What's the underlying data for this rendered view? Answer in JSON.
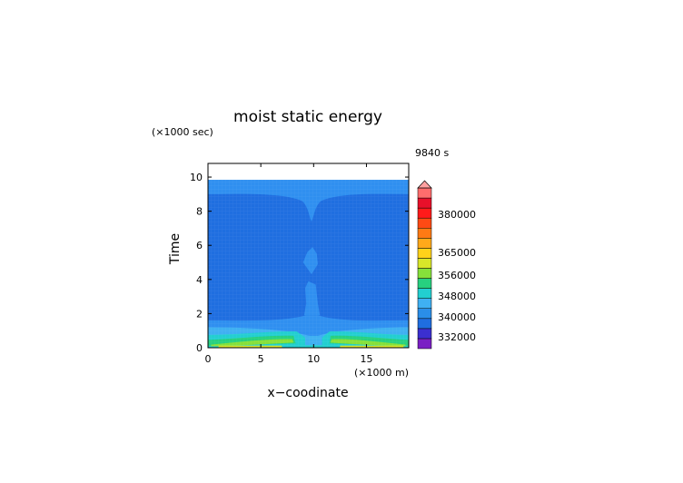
{
  "chart_data": {
    "type": "heatmap",
    "title": "moist static energy",
    "xlabel": "x−coodinate",
    "ylabel": "Time",
    "x_unit": "(×1000 m)",
    "y_unit": "(×1000 sec)",
    "time_label": "9840 s",
    "xlim": [
      0,
      19
    ],
    "ylim": [
      0,
      10.8
    ],
    "data_ymax": 9.84,
    "x_ticks": [
      "0",
      "5",
      "10",
      "15"
    ],
    "y_ticks": [
      "0",
      "2",
      "4",
      "6",
      "8",
      "10"
    ],
    "colorbar": {
      "labels": [
        "332000",
        "340000",
        "348000",
        "356000",
        "365000",
        "380000"
      ],
      "colors": [
        "#7a1fc4",
        "#3b2fd0",
        "#1f6ee0",
        "#2a8ee8",
        "#3fb0f2",
        "#22cfd0",
        "#27d07f",
        "#86e03a",
        "#d8e629",
        "#ffd21a",
        "#ffa91a",
        "#ff7a14",
        "#ff4a14",
        "#ff1a1a",
        "#e8102a",
        "#ff6d6d"
      ],
      "extend_max": true
    },
    "fields": {
      "background": "#2f8ff0",
      "deep": "#1f6ee0",
      "mid": "#3fb0f2",
      "cyan": "#22cfd0",
      "green": "#27d07f",
      "lime": "#86e03a",
      "yellow": "#d8e629"
    }
  }
}
